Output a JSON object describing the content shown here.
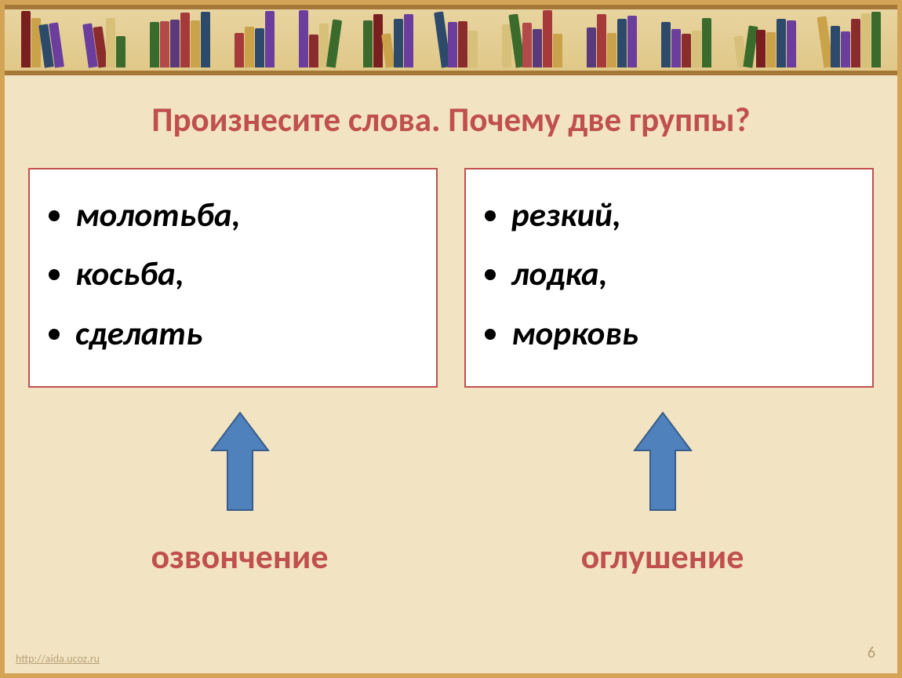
{
  "title": {
    "text": "Произнесите слова. Почему две группы?",
    "color": "#c0504d"
  },
  "left_box": {
    "items": [
      "молотьба,",
      " косьба,",
      " сделать"
    ],
    "border_color": "#c0504d"
  },
  "right_box": {
    "items": [
      "резкий,",
      "лодка,",
      "морковь"
    ],
    "border_color": "#c0504d"
  },
  "arrows": {
    "fill": "#4f81bd",
    "stroke": "#385d8a"
  },
  "labels": {
    "left": "озвончение",
    "right": "оглушение",
    "color": "#c0504d"
  },
  "shelf_book_colors": [
    "#7a1f1f",
    "#c9a24a",
    "#2d4a6b",
    "#6b3e9e",
    "#8b2c2c",
    "#d6c07a",
    "#3a6b2d",
    "#b24a4a",
    "#5a3a7a",
    "#a63a3a",
    "#c9a24a",
    "#2d4a6b",
    "#6b3e9e",
    "#8b2c2c",
    "#d6c07a",
    "#3a6b2d"
  ],
  "page_number": "6",
  "footer_link": "http://aida.ucoz.ru"
}
